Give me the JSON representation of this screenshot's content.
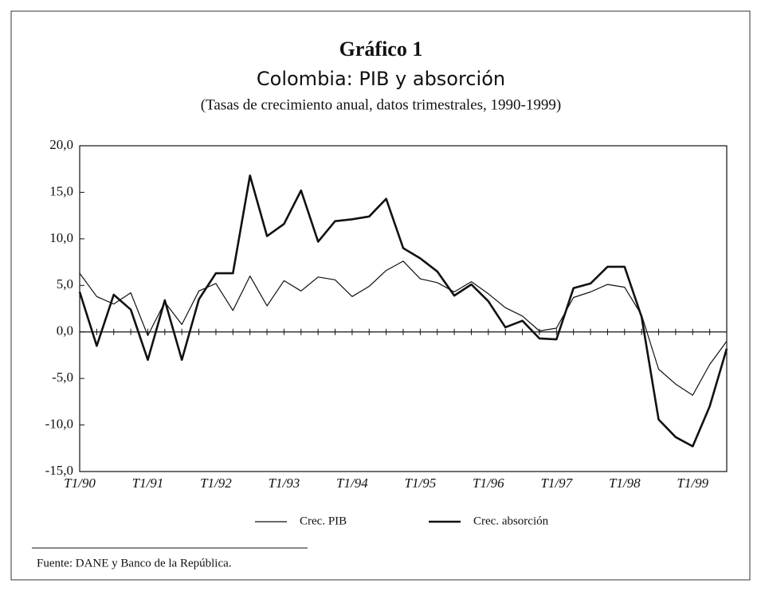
{
  "chart_data": {
    "type": "line",
    "title": "Gráfico 1",
    "subtitle": "Colombia: PIB y absorción",
    "subtitle2": "(Tasas de crecimiento anual, datos trimestrales, 1990-1999)",
    "source": "Fuente: DANE y Banco de la República.",
    "categories": [
      "T1/90",
      null,
      null,
      null,
      "T1/91",
      null,
      null,
      null,
      "T1/92",
      null,
      null,
      null,
      "T1/93",
      null,
      null,
      null,
      "T1/94",
      null,
      null,
      null,
      "T1/95",
      null,
      null,
      null,
      "T1/96",
      null,
      null,
      null,
      "T1/97",
      null,
      null,
      null,
      "T1/98",
      null,
      null,
      null,
      "T1/99",
      null,
      null
    ],
    "series": [
      {
        "name": "Crec. PIB",
        "color": "#111111",
        "width": 1.2,
        "values": [
          6.3,
          3.8,
          3.0,
          4.2,
          -0.4,
          3.2,
          0.8,
          4.4,
          5.2,
          2.3,
          6.0,
          2.8,
          5.5,
          4.4,
          5.9,
          5.6,
          3.8,
          4.9,
          6.6,
          7.6,
          5.7,
          5.3,
          4.3,
          5.4,
          4.1,
          2.6,
          1.7,
          0.1,
          0.4,
          3.7,
          4.3,
          5.1,
          4.8,
          1.8,
          -4.0,
          -5.6,
          -6.8,
          -3.5,
          -1.0
        ]
      },
      {
        "name": "Crec. absorción",
        "color": "#111111",
        "width": 2.6,
        "values": [
          4.3,
          -1.5,
          4.0,
          2.4,
          -3.0,
          3.4,
          -3.0,
          3.5,
          6.3,
          6.3,
          16.8,
          10.3,
          11.6,
          15.2,
          9.7,
          11.9,
          12.1,
          12.4,
          14.3,
          9.0,
          7.9,
          6.5,
          3.9,
          5.1,
          3.3,
          0.5,
          1.2,
          -0.7,
          -0.8,
          4.7,
          5.2,
          7.0,
          7.0,
          1.6,
          -9.4,
          -11.3,
          -12.3,
          -8.0,
          -1.8
        ]
      }
    ],
    "ylim": [
      -15,
      20
    ],
    "yticks": [
      {
        "value": -15,
        "label": "-15,0"
      },
      {
        "value": -10,
        "label": "-10,0"
      },
      {
        "value": -5,
        "label": "-5,0"
      },
      {
        "value": 0,
        "label": "0,0"
      },
      {
        "value": 5,
        "label": "5,0"
      },
      {
        "value": 10,
        "label": "10,0"
      },
      {
        "value": 15,
        "label": "15,0"
      },
      {
        "value": 20,
        "label": "20,0"
      }
    ],
    "legend": "bottom"
  }
}
